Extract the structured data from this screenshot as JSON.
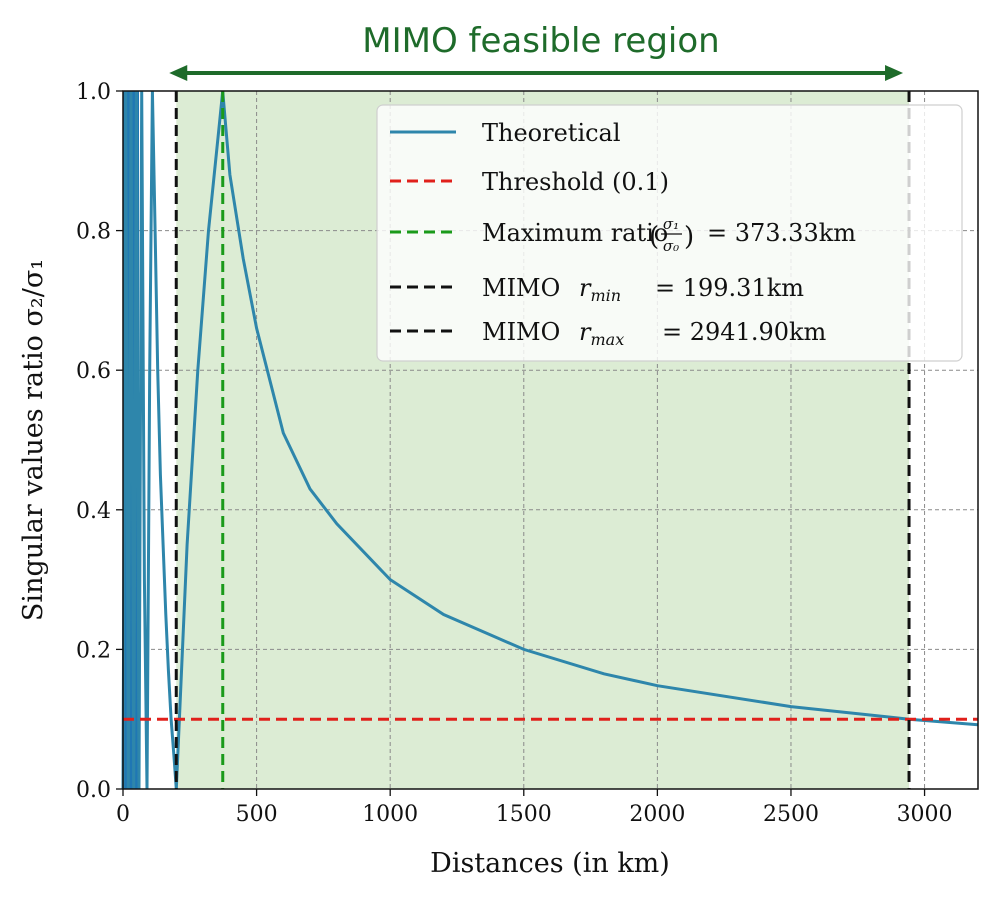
{
  "colors": {
    "theoretical": "#2e86ab",
    "low_distance_band": "#1f77b4",
    "threshold": "#e0201b",
    "maximum": "#1a9a1a",
    "mimo_bound": "#111111",
    "feasible_fill": "#dcecd4",
    "banner": "#1e6b2a"
  },
  "chart_data": {
    "type": "line",
    "title": "MIMO feasible region",
    "xlabel": "Distances (in km)",
    "ylabel": "Singular values ratio σ₂/σ₁",
    "xlim": [
      0,
      3200
    ],
    "ylim": [
      0,
      1.0
    ],
    "x_ticks": [
      0,
      500,
      1000,
      1500,
      2000,
      2500,
      3000
    ],
    "y_ticks": [
      0.0,
      0.2,
      0.4,
      0.6,
      0.8,
      1.0
    ],
    "x_tick_labels": [
      "0",
      "500",
      "1000",
      "1500",
      "2000",
      "2500",
      "3000"
    ],
    "y_tick_labels": [
      "0.0",
      "0.2",
      "0.4",
      "0.6",
      "0.8",
      "1.0"
    ],
    "grid": true,
    "legend_position": "top-right",
    "feasible_region_km": [
      199.31,
      2941.9
    ],
    "series": [
      {
        "name": "Theoretical",
        "style": "solid",
        "x": [
          0,
          10,
          20,
          30,
          40,
          50,
          60,
          70,
          80,
          90,
          100,
          110,
          120,
          130,
          140,
          150,
          160,
          170,
          180,
          190,
          199.31,
          240,
          280,
          320,
          360,
          373.33,
          400,
          450,
          500,
          600,
          700,
          800,
          1000,
          1200,
          1500,
          1800,
          2000,
          2500,
          2941.9,
          3200
        ],
        "y": [
          0.0,
          1.0,
          0.0,
          1.0,
          0.0,
          1.0,
          0.0,
          1.0,
          0.3,
          0.0,
          0.6,
          1.0,
          0.8,
          0.6,
          0.45,
          0.35,
          0.25,
          0.17,
          0.1,
          0.05,
          0.0,
          0.35,
          0.6,
          0.8,
          0.95,
          1.0,
          0.88,
          0.76,
          0.66,
          0.51,
          0.43,
          0.38,
          0.3,
          0.25,
          0.2,
          0.165,
          0.148,
          0.118,
          0.1,
          0.092
        ]
      },
      {
        "name": "Threshold (0.1)",
        "style": "dashed",
        "y_constant": 0.1
      },
      {
        "name": "Maximum ratio (σ₁/σ₀) = 373.33km",
        "style": "dashed",
        "x_constant": 373.33
      },
      {
        "name": "MIMO r_min = 199.31km",
        "style": "dashed",
        "x_constant": 199.31
      },
      {
        "name": "MIMO r_max = 2941.90km",
        "style": "dashed",
        "x_constant": 2941.9
      }
    ]
  },
  "legend_text": {
    "theoretical": "Theoretical",
    "threshold": "Threshold (0.1)",
    "maximum_prefix": "Maximum ratio",
    "maximum_suffix": "= 373.33km",
    "rmin_prefix": "MIMO",
    "rmin_suffix": "= 199.31km",
    "rmax_prefix": "MIMO",
    "rmax_suffix": "= 2941.90km"
  }
}
